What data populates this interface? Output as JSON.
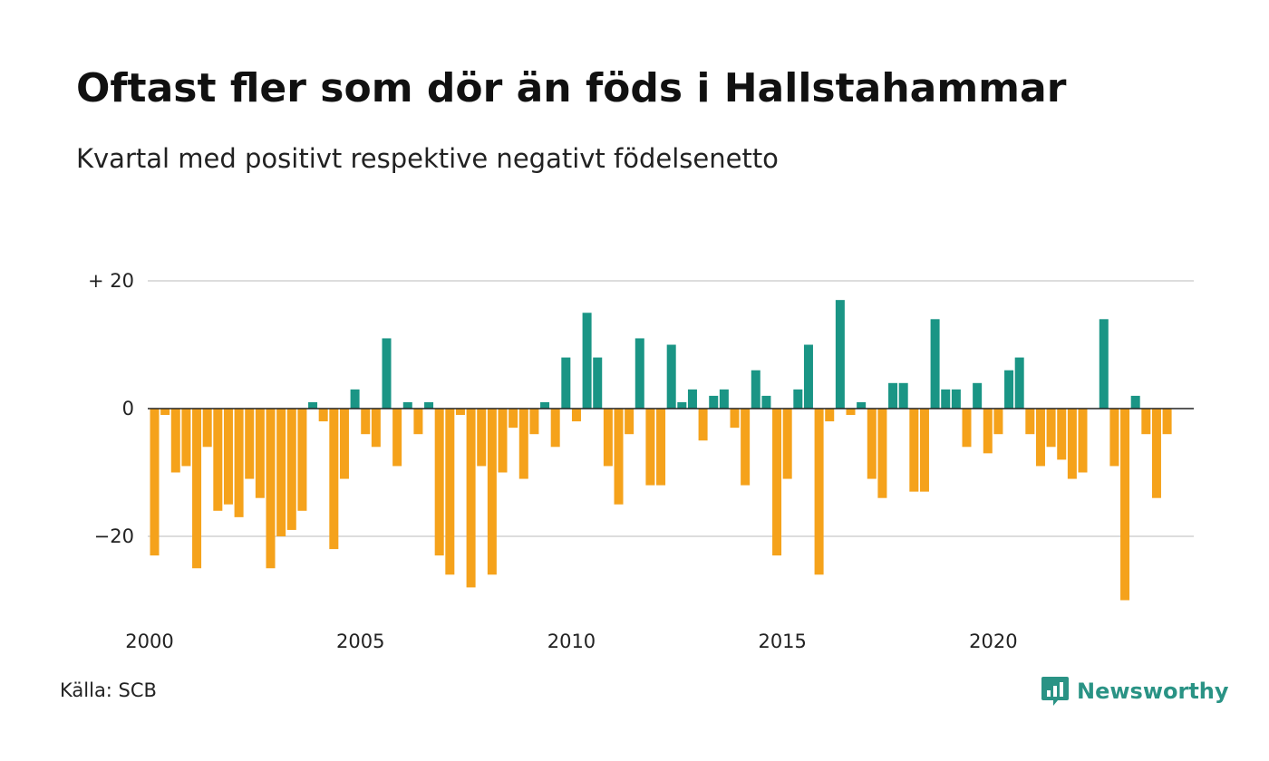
{
  "colors": {
    "positive": "#1a9585",
    "negative": "#f5a21b",
    "grid": "#dddddd",
    "axis": "#222222"
  },
  "chart_data": {
    "type": "bar",
    "title": "Oftast fler som dör än föds i Hallstahammar",
    "subtitle": "Kvartal med positivt respektive negativt födelsenetto",
    "x_start": 2000.0,
    "x_step": 0.25,
    "xlim": [
      2000,
      2024.75
    ],
    "ylim": [
      -32,
      22
    ],
    "grid": true,
    "x_ticks": [
      {
        "value": 2000,
        "label": "2000"
      },
      {
        "value": 2005,
        "label": "2005"
      },
      {
        "value": 2010,
        "label": "2010"
      },
      {
        "value": 2015,
        "label": "2015"
      },
      {
        "value": 2020,
        "label": "2020"
      }
    ],
    "y_ticks": [
      {
        "value": 20,
        "label": "+ 20"
      },
      {
        "value": 0,
        "label": "0"
      },
      {
        "value": -20,
        "label": "−20"
      }
    ],
    "values": [
      -23,
      -1,
      -10,
      -9,
      -25,
      -6,
      -16,
      -15,
      -17,
      -11,
      -14,
      -25,
      -20,
      -19,
      -16,
      1,
      -2,
      -22,
      -11,
      3,
      -4,
      -6,
      11,
      -9,
      1,
      -4,
      1,
      -23,
      -26,
      -1,
      -28,
      -9,
      -26,
      -10,
      -3,
      -11,
      -4,
      1,
      -6,
      8,
      -2,
      15,
      8,
      -9,
      -15,
      -4,
      11,
      -12,
      -12,
      10,
      1,
      3,
      -5,
      2,
      3,
      -3,
      -12,
      6,
      2,
      -23,
      -11,
      3,
      10,
      -26,
      -2,
      17,
      -1,
      1,
      -11,
      -14,
      4,
      4,
      -13,
      -13,
      14,
      3,
      3,
      -6,
      4,
      -7,
      -4,
      6,
      8,
      -4,
      -9,
      -6,
      -8,
      -11,
      -10,
      0,
      14,
      -9,
      -30,
      2,
      -4,
      -14,
      -4
    ]
  },
  "footer": {
    "source": "Källa: SCB",
    "brand": "Newsworthy"
  },
  "icons": {
    "brand_logo": "newsworthy-logo-icon"
  }
}
